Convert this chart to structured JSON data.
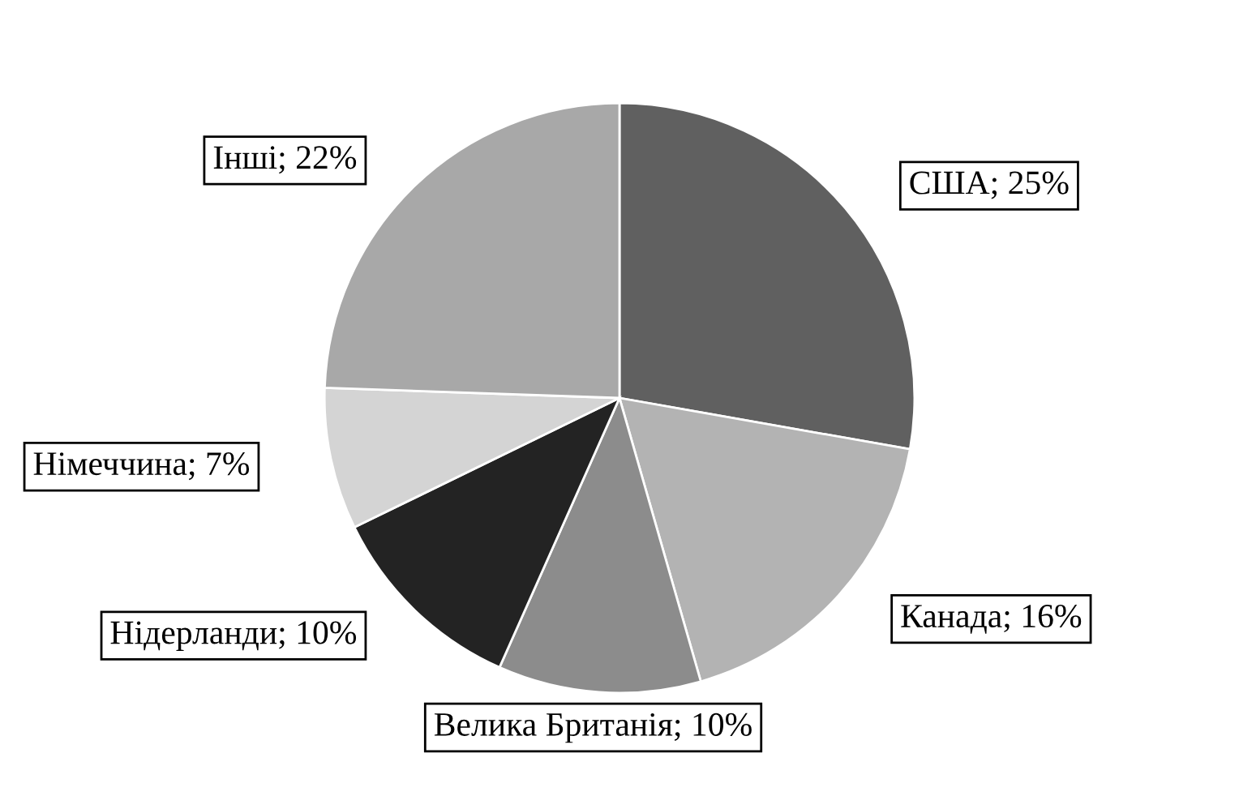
{
  "chart_data": {
    "type": "pie",
    "categories": [
      "США",
      "Канада",
      "Велика Британія",
      "Нідерланди",
      "Німеччина",
      "Інші"
    ],
    "values": [
      25,
      16,
      10,
      10,
      7,
      22
    ],
    "value_labels": [
      "25%",
      "16%",
      "10%",
      "10%",
      "7%",
      "22%"
    ],
    "colors": [
      "#606060",
      "#b3b3b3",
      "#8c8c8c",
      "#232323",
      "#d4d4d4",
      "#a8a8a8"
    ]
  }
}
